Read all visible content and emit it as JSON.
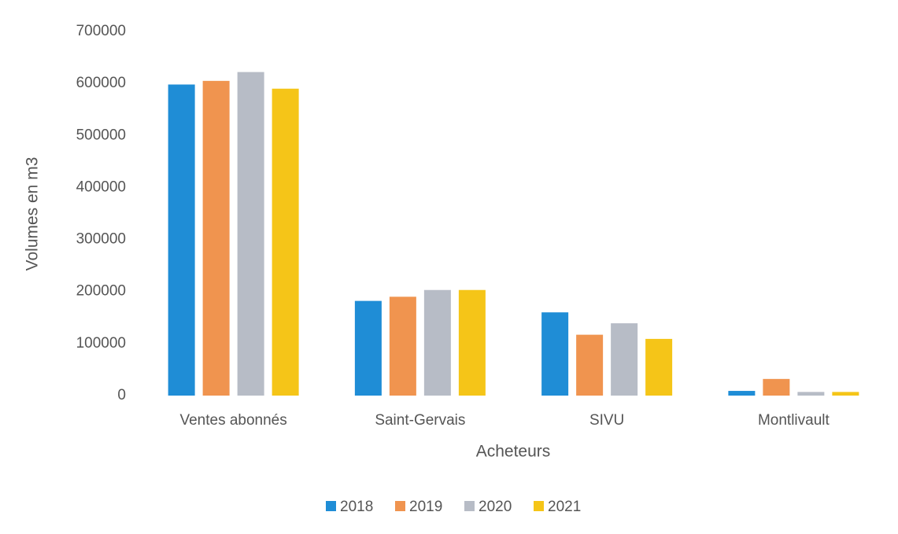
{
  "chart_data": {
    "type": "bar",
    "categories": [
      "Ventes abonnés",
      "Saint-Gervais",
      "SIVU",
      "Montlivault"
    ],
    "series": [
      {
        "name": "2018",
        "color": "#1f8dd6",
        "values": [
          598000,
          182000,
          160000,
          9000
        ]
      },
      {
        "name": "2019",
        "color": "#f0944f",
        "values": [
          605000,
          190000,
          117000,
          32000
        ]
      },
      {
        "name": "2020",
        "color": "#b7bcc6",
        "values": [
          622000,
          203000,
          139000,
          7000
        ]
      },
      {
        "name": "2021",
        "color": "#f5c518",
        "values": [
          590000,
          203000,
          109000,
          7000
        ]
      }
    ],
    "xlabel": "Acheteurs",
    "ylabel": "Volumes en m3",
    "ylim": [
      0,
      700000
    ],
    "yticks": [
      0,
      100000,
      200000,
      300000,
      400000,
      500000,
      600000,
      700000
    ],
    "legend": "bottom"
  }
}
